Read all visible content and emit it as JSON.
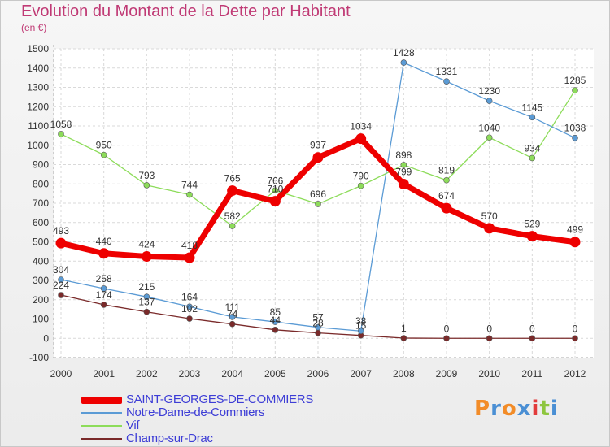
{
  "header": {
    "title": "Evolution du Montant de la Dette par Habitant",
    "unit": "(en €)"
  },
  "logo": {
    "text": "Proxiti"
  },
  "chart_data": {
    "type": "line",
    "title": "Evolution du Montant de la Dette par Habitant",
    "ylabel": "(en €)",
    "x": [
      "2000",
      "2001",
      "2002",
      "2003",
      "2004",
      "2005",
      "2006",
      "2007",
      "2008",
      "2009",
      "2010",
      "2011",
      "2012"
    ],
    "ylim": [
      -100,
      1500
    ],
    "yticks": [
      -100,
      0,
      100,
      200,
      300,
      400,
      500,
      600,
      700,
      800,
      900,
      1000,
      1100,
      1200,
      1300,
      1400,
      1500
    ],
    "grid": true,
    "legend_position": "bottom-left",
    "series": [
      {
        "name": "SAINT-GEORGES-DE-COMMIERS",
        "color": "#ee0000",
        "emphasis": true,
        "values": [
          493,
          440,
          424,
          418,
          765,
          710,
          937,
          1034,
          799,
          674,
          570,
          529,
          499
        ],
        "labels": [
          "493",
          "440",
          "424",
          "418",
          "765",
          "",
          "937",
          "1034",
          "",
          "674",
          "570",
          "529",
          "499"
        ]
      },
      {
        "name": "Notre-Dame-de-Commiers",
        "color": "#5b9bd5",
        "values": [
          304,
          258,
          215,
          164,
          111,
          85,
          57,
          38,
          1428,
          1331,
          1230,
          1145,
          1038
        ],
        "labels": [
          "304",
          "258",
          "215",
          "164",
          "111",
          "85",
          "57",
          "38",
          "1428",
          "1331",
          "1230",
          "1145",
          "1038"
        ]
      },
      {
        "name": "Vif",
        "color": "#8ddc5a",
        "values": [
          1058,
          950,
          793,
          744,
          582,
          766,
          696,
          790,
          898,
          819,
          1040,
          934,
          1285
        ],
        "labels": [
          "1058",
          "950",
          "793",
          "744",
          "582",
          "766",
          "696",
          "790",
          "898",
          "819",
          "1040",
          "934",
          "1285"
        ]
      },
      {
        "name": "Champ-sur-Drac",
        "color": "#7a2a2a",
        "values": [
          224,
          174,
          137,
          102,
          74,
          44,
          28,
          15,
          1,
          0,
          0,
          0,
          0
        ],
        "labels": [
          "224",
          "174",
          "137",
          "102",
          "74",
          "44",
          "28",
          "15",
          "1",
          "0",
          "0",
          "0",
          "0"
        ]
      }
    ],
    "extra_labels": [
      {
        "series": "SAINT-GEORGES-DE-COMMIERS",
        "index": 5,
        "text": "710"
      },
      {
        "series": "SAINT-GEORGES-DE-COMMIERS",
        "index": 8,
        "text": "799"
      }
    ]
  }
}
